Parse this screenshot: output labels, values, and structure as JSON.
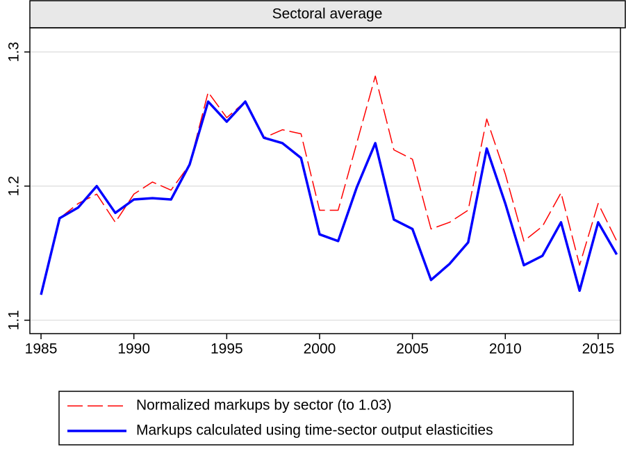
{
  "chart_data": {
    "type": "line",
    "title": "Sectoral average",
    "x": [
      1985,
      1986,
      1987,
      1988,
      1989,
      1990,
      1991,
      1992,
      1993,
      1994,
      1995,
      1996,
      1997,
      1998,
      1999,
      2000,
      2001,
      2002,
      2003,
      2004,
      2005,
      2006,
      2007,
      2008,
      2009,
      2010,
      2011,
      2012,
      2013,
      2014,
      2015,
      2016
    ],
    "series": [
      {
        "name": "Normalized markups by sector (to 1.03)",
        "color": "#ff0000",
        "dash": true,
        "values": [
          1.119,
          1.176,
          1.187,
          1.194,
          1.173,
          1.194,
          1.203,
          1.197,
          1.216,
          1.27,
          1.251,
          1.263,
          1.236,
          1.242,
          1.239,
          1.182,
          1.182,
          1.232,
          1.282,
          1.227,
          1.22,
          1.168,
          1.173,
          1.182,
          1.25,
          1.209,
          1.159,
          1.17,
          1.195,
          1.141,
          1.187,
          1.159
        ]
      },
      {
        "name": "Markups calculated using time-sector output elasticities",
        "color": "#0000ff",
        "dash": false,
        "values": [
          1.119,
          1.176,
          1.184,
          1.2,
          1.18,
          1.19,
          1.191,
          1.19,
          1.216,
          1.263,
          1.248,
          1.263,
          1.236,
          1.232,
          1.221,
          1.164,
          1.159,
          1.199,
          1.232,
          1.175,
          1.168,
          1.13,
          1.142,
          1.158,
          1.228,
          1.187,
          1.141,
          1.148,
          1.173,
          1.122,
          1.173,
          1.149
        ]
      }
    ],
    "xlim": [
      1984.4,
      2016.2
    ],
    "ylim": [
      1.09,
      1.318
    ],
    "xticks": [
      1985,
      1990,
      1995,
      2000,
      2005,
      2010,
      2015
    ],
    "yticks": [
      1.1,
      1.2,
      1.3
    ],
    "grid": true
  }
}
